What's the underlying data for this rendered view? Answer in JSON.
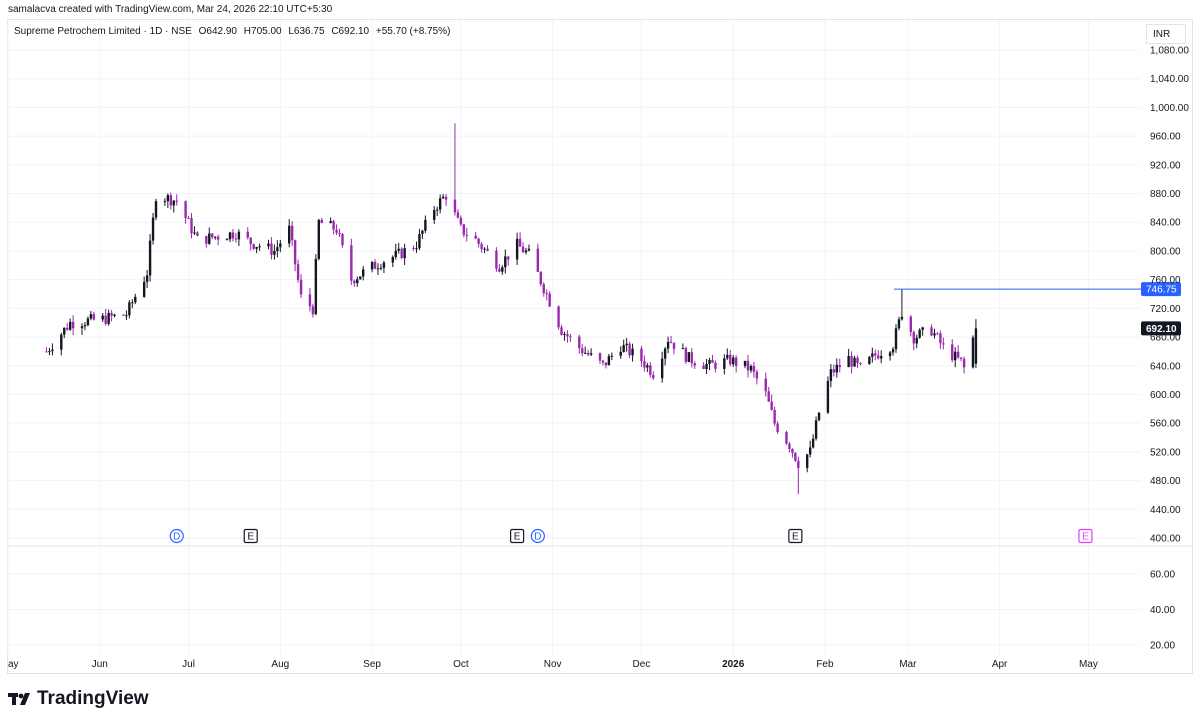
{
  "header": {
    "credit": "samalacva created with TradingView.com, Mar 24, 2026 22:10 UTC+5:30"
  },
  "legend": {
    "symbol": "Supreme Petrochem Limited · 1D · NSE",
    "open": "O642.90",
    "high": "H705.00",
    "low": "L636.75",
    "close": "C692.10",
    "change": "+55.70 (+8.75%)"
  },
  "currency": "INR",
  "brand": {
    "name": "TradingView",
    "logo": "tradingview-logo"
  },
  "colors": {
    "up": "#131722",
    "down": "#9c27b0",
    "level_line": "#2962ff",
    "grid": "#f0f3fa",
    "dividend_marker": "#2962ff",
    "earnings_marker": "#131722",
    "future_earnings_marker": "#e040fb"
  },
  "chart_data": [
    {
      "type": "candlestick",
      "title": "Supreme Petrochem Limited · 1D · NSE",
      "x_tick_labels": [
        "ay",
        "Jun",
        "Jul",
        "Aug",
        "Sep",
        "Oct",
        "Nov",
        "Dec",
        "2026",
        "Feb",
        "Mar",
        "Apr",
        "May"
      ],
      "y_tick_labels": [
        "400.00",
        "440.00",
        "480.00",
        "520.00",
        "560.00",
        "600.00",
        "640.00",
        "680.00",
        "720.00",
        "760.00",
        "800.00",
        "840.00",
        "880.00",
        "920.00",
        "960.00",
        "1,000.00",
        "1,040.00",
        "1,080.00"
      ],
      "ylim": [
        400,
        1090
      ],
      "horizontal_line": {
        "value": 746.75,
        "label": "746.75"
      },
      "last_price": {
        "value": 692.1,
        "label": "692.10"
      },
      "series_close_anchors": [
        [
          "2025-05-14",
          660
        ],
        [
          "2025-05-22",
          700
        ],
        [
          "2025-06-02",
          705
        ],
        [
          "2025-06-10",
          712
        ],
        [
          "2025-06-17",
          770
        ],
        [
          "2025-06-20",
          878
        ],
        [
          "2025-06-27",
          870
        ],
        [
          "2025-07-04",
          815
        ],
        [
          "2025-07-10",
          820
        ],
        [
          "2025-07-17",
          825
        ],
        [
          "2025-07-22",
          812
        ],
        [
          "2025-07-30",
          800
        ],
        [
          "2025-08-04",
          830
        ],
        [
          "2025-08-08",
          735
        ],
        [
          "2025-08-12",
          720
        ],
        [
          "2025-08-14",
          840
        ],
        [
          "2025-08-20",
          830
        ],
        [
          "2025-08-25",
          760
        ],
        [
          "2025-09-04",
          785
        ],
        [
          "2025-09-10",
          795
        ],
        [
          "2025-09-16",
          810
        ],
        [
          "2025-09-22",
          860
        ],
        [
          "2025-09-26",
          878
        ],
        [
          "2025-10-01",
          830
        ],
        [
          "2025-10-06",
          815
        ],
        [
          "2025-10-14",
          780
        ],
        [
          "2025-10-20",
          808
        ],
        [
          "2025-10-24",
          795
        ],
        [
          "2025-10-30",
          740
        ],
        [
          "2025-11-04",
          690
        ],
        [
          "2025-11-10",
          665
        ],
        [
          "2025-11-18",
          640
        ],
        [
          "2025-11-24",
          668
        ],
        [
          "2025-12-01",
          648
        ],
        [
          "2025-12-05",
          630
        ],
        [
          "2025-12-10",
          678
        ],
        [
          "2025-12-17",
          650
        ],
        [
          "2025-12-24",
          640
        ],
        [
          "2025-12-31",
          648
        ],
        [
          "2026-01-07",
          635
        ],
        [
          "2026-01-12",
          600
        ],
        [
          "2026-01-15",
          560
        ],
        [
          "2026-01-20",
          530
        ],
        [
          "2026-01-23",
          505
        ],
        [
          "2026-01-27",
          520
        ],
        [
          "2026-01-30",
          575
        ],
        [
          "2026-02-03",
          630
        ],
        [
          "2026-02-09",
          650
        ],
        [
          "2026-02-13",
          635
        ],
        [
          "2026-02-18",
          655
        ],
        [
          "2026-02-24",
          670
        ],
        [
          "2026-02-27",
          715
        ],
        [
          "2026-03-03",
          680
        ],
        [
          "2026-03-09",
          690
        ],
        [
          "2026-03-13",
          665
        ],
        [
          "2026-03-19",
          645
        ],
        [
          "2026-03-20",
          636.4
        ],
        [
          "2026-03-24",
          692.1
        ]
      ],
      "notable_points": [
        {
          "date": "2025-09-29",
          "high": 978
        },
        {
          "date": "2026-01-23",
          "low": 461
        },
        {
          "date": "2026-02-27",
          "high": 746.75
        },
        {
          "date": "2026-03-24",
          "open": 642.9,
          "high": 705,
          "low": 636.75,
          "close": 692.1
        }
      ],
      "event_markers": [
        {
          "type": "dividend",
          "label": "D",
          "date": "2025-06-27"
        },
        {
          "type": "earnings",
          "label": "E",
          "date": "2025-07-22"
        },
        {
          "type": "earnings",
          "label": "E",
          "date": "2025-10-20"
        },
        {
          "type": "dividend",
          "label": "D",
          "date": "2025-10-27"
        },
        {
          "type": "earnings",
          "label": "E",
          "date": "2026-01-22"
        },
        {
          "type": "earnings-upcoming",
          "label": "E",
          "date": "2026-04-30"
        }
      ]
    },
    {
      "type": "line",
      "title": "",
      "y_tick_labels": [
        "20.00",
        "40.00",
        "60.00"
      ],
      "ylim": [
        12,
        72
      ]
    }
  ]
}
